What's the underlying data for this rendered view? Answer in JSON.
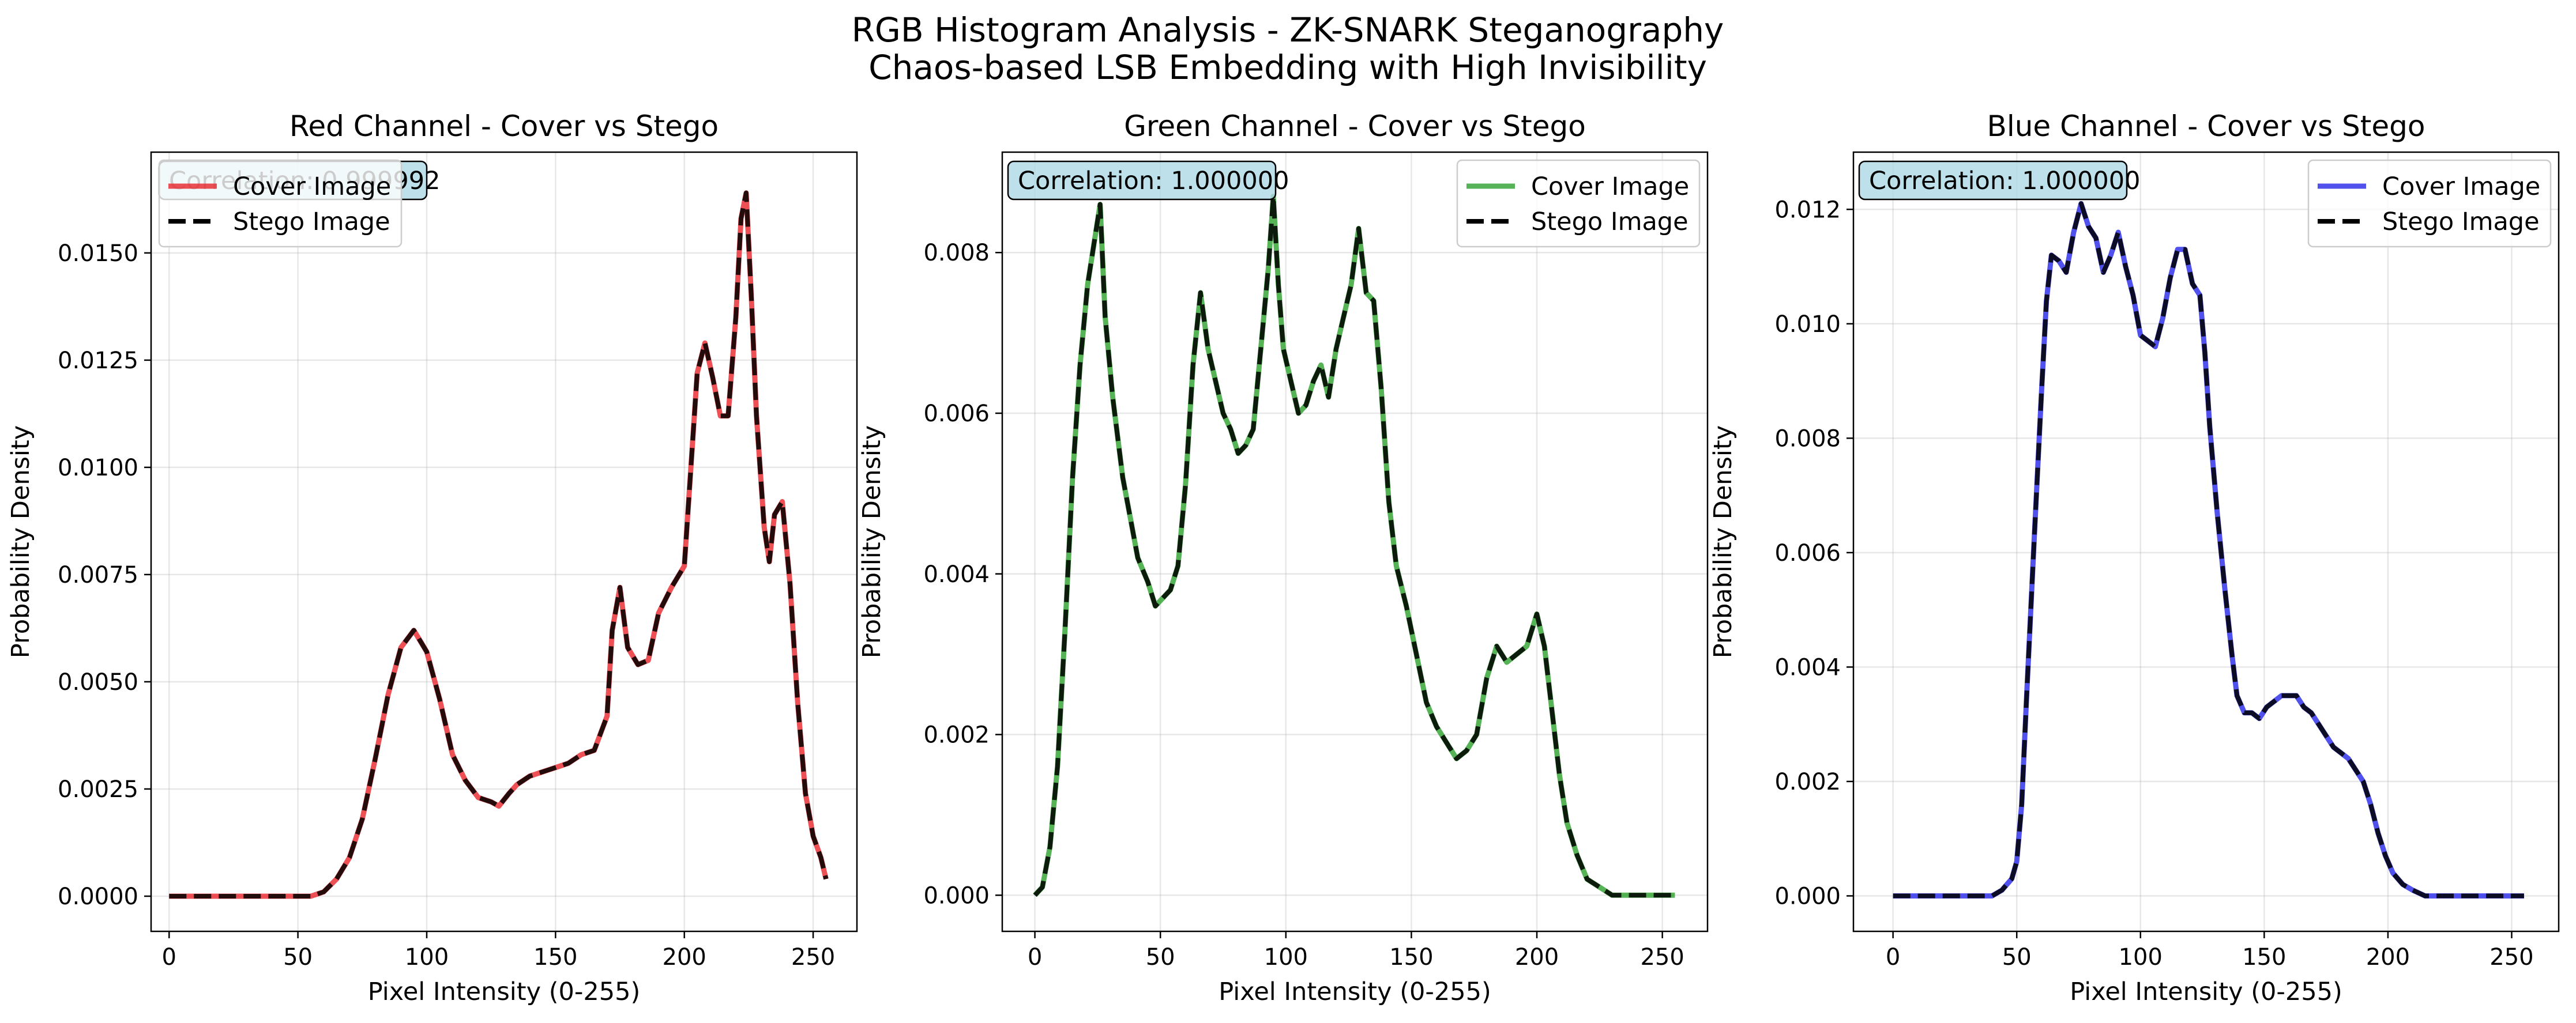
{
  "figure": {
    "title_line1": "RGB Histogram Analysis - ZK-SNARK Steganography",
    "title_line2": "Chaos-based LSB Embedding with High Invisibility"
  },
  "chart_data": [
    {
      "type": "line",
      "title": "Red Channel - Cover vs Stego",
      "xlabel": "Pixel Intensity (0-255)",
      "ylabel": "Probability Density",
      "xlim": [
        -7,
        267
      ],
      "ylim": [
        -0.00082,
        0.01735
      ],
      "xticks": [
        0,
        50,
        100,
        150,
        200,
        250
      ],
      "yticks": [
        0.0,
        0.0025,
        0.005,
        0.0075,
        0.01,
        0.0125,
        0.015
      ],
      "ytick_labels": [
        "0.0000",
        "0.0025",
        "0.0050",
        "0.0075",
        "0.0100",
        "0.0125",
        "0.0150"
      ],
      "grid": true,
      "legend": "top-left",
      "correlation_text": "Correlation: 0.999992",
      "cover_color": "#e8262c",
      "series": [
        {
          "name": "Cover Image",
          "style": "solid"
        },
        {
          "name": "Stego Image",
          "style": "dashed"
        }
      ],
      "points": [
        [
          0,
          0
        ],
        [
          55,
          0
        ],
        [
          60,
          0.0001
        ],
        [
          65,
          0.0004
        ],
        [
          70,
          0.0009
        ],
        [
          75,
          0.0018
        ],
        [
          80,
          0.0032
        ],
        [
          85,
          0.0047
        ],
        [
          90,
          0.0058
        ],
        [
          95,
          0.0062
        ],
        [
          98,
          0.0059
        ],
        [
          100,
          0.0057
        ],
        [
          105,
          0.0046
        ],
        [
          110,
          0.0033
        ],
        [
          115,
          0.0027
        ],
        [
          120,
          0.0023
        ],
        [
          125,
          0.0022
        ],
        [
          128,
          0.0021
        ],
        [
          132,
          0.0024
        ],
        [
          135,
          0.0026
        ],
        [
          140,
          0.0028
        ],
        [
          145,
          0.0029
        ],
        [
          150,
          0.003
        ],
        [
          155,
          0.0031
        ],
        [
          160,
          0.0033
        ],
        [
          165,
          0.0034
        ],
        [
          170,
          0.0042
        ],
        [
          172,
          0.0062
        ],
        [
          175,
          0.0072
        ],
        [
          178,
          0.0058
        ],
        [
          182,
          0.0054
        ],
        [
          186,
          0.0055
        ],
        [
          190,
          0.0066
        ],
        [
          195,
          0.0072
        ],
        [
          200,
          0.0077
        ],
        [
          205,
          0.0122
        ],
        [
          208,
          0.0129
        ],
        [
          211,
          0.0121
        ],
        [
          214,
          0.0112
        ],
        [
          217,
          0.0112
        ],
        [
          220,
          0.0135
        ],
        [
          222,
          0.0158
        ],
        [
          224,
          0.0164
        ],
        [
          226,
          0.014
        ],
        [
          228,
          0.0112
        ],
        [
          231,
          0.0086
        ],
        [
          233,
          0.0078
        ],
        [
          235,
          0.0089
        ],
        [
          238,
          0.0092
        ],
        [
          241,
          0.0073
        ],
        [
          244,
          0.0045
        ],
        [
          247,
          0.0024
        ],
        [
          250,
          0.0014
        ],
        [
          253,
          0.0009
        ],
        [
          255,
          0.0004
        ]
      ]
    },
    {
      "type": "line",
      "title": "Green Channel - Cover vs Stego",
      "xlabel": "Pixel Intensity (0-255)",
      "ylabel": "Probability Density",
      "xlim": [
        -13,
        268
      ],
      "ylim": [
        -0.00045,
        0.00925
      ],
      "xticks": [
        0,
        50,
        100,
        150,
        200,
        250
      ],
      "yticks": [
        0.0,
        0.002,
        0.004,
        0.006,
        0.008
      ],
      "ytick_labels": [
        "0.000",
        "0.002",
        "0.004",
        "0.006",
        "0.008"
      ],
      "grid": true,
      "legend": "top-right",
      "correlation_text": "Correlation: 1.000000",
      "cover_color": "#2ca02c",
      "series": [
        {
          "name": "Cover Image",
          "style": "solid"
        },
        {
          "name": "Stego Image",
          "style": "dashed"
        }
      ],
      "points": [
        [
          0,
          0
        ],
        [
          3,
          0.0001
        ],
        [
          6,
          0.0006
        ],
        [
          9,
          0.0016
        ],
        [
          12,
          0.0033
        ],
        [
          15,
          0.0052
        ],
        [
          18,
          0.0066
        ],
        [
          21,
          0.0076
        ],
        [
          24,
          0.0082
        ],
        [
          26,
          0.0086
        ],
        [
          28,
          0.0072
        ],
        [
          31,
          0.0062
        ],
        [
          35,
          0.0052
        ],
        [
          38,
          0.0047
        ],
        [
          41,
          0.0042
        ],
        [
          45,
          0.0039
        ],
        [
          48,
          0.0036
        ],
        [
          51,
          0.0037
        ],
        [
          54,
          0.0038
        ],
        [
          57,
          0.0041
        ],
        [
          60,
          0.0051
        ],
        [
          63,
          0.0066
        ],
        [
          66,
          0.0075
        ],
        [
          69,
          0.0068
        ],
        [
          72,
          0.0064
        ],
        [
          75,
          0.006
        ],
        [
          78,
          0.0058
        ],
        [
          81,
          0.0055
        ],
        [
          84,
          0.0056
        ],
        [
          87,
          0.0058
        ],
        [
          90,
          0.0068
        ],
        [
          93,
          0.0078
        ],
        [
          95,
          0.0087
        ],
        [
          97,
          0.0076
        ],
        [
          99,
          0.0068
        ],
        [
          102,
          0.0064
        ],
        [
          105,
          0.006
        ],
        [
          108,
          0.0061
        ],
        [
          111,
          0.0064
        ],
        [
          114,
          0.0066
        ],
        [
          117,
          0.0062
        ],
        [
          120,
          0.0068
        ],
        [
          123,
          0.0072
        ],
        [
          126,
          0.0076
        ],
        [
          129,
          0.0083
        ],
        [
          132,
          0.0075
        ],
        [
          135,
          0.0074
        ],
        [
          138,
          0.0063
        ],
        [
          141,
          0.0049
        ],
        [
          144,
          0.0041
        ],
        [
          148,
          0.0036
        ],
        [
          152,
          0.003
        ],
        [
          156,
          0.0024
        ],
        [
          160,
          0.0021
        ],
        [
          164,
          0.0019
        ],
        [
          168,
          0.0017
        ],
        [
          172,
          0.0018
        ],
        [
          176,
          0.002
        ],
        [
          180,
          0.0027
        ],
        [
          184,
          0.0031
        ],
        [
          188,
          0.0029
        ],
        [
          192,
          0.003
        ],
        [
          196,
          0.0031
        ],
        [
          200,
          0.0035
        ],
        [
          203,
          0.0031
        ],
        [
          206,
          0.0023
        ],
        [
          209,
          0.0015
        ],
        [
          212,
          0.0009
        ],
        [
          216,
          0.0005
        ],
        [
          220,
          0.0002
        ],
        [
          225,
          0.0001
        ],
        [
          230,
          0
        ],
        [
          255,
          0
        ]
      ]
    },
    {
      "type": "line",
      "title": "Blue Channel - Cover vs Stego",
      "xlabel": "Pixel Intensity (0-255)",
      "ylabel": "Probability Density",
      "xlim": [
        -16,
        269
      ],
      "ylim": [
        -0.00062,
        0.013
      ],
      "xticks": [
        0,
        50,
        100,
        150,
        200,
        250
      ],
      "yticks": [
        0.0,
        0.002,
        0.004,
        0.006,
        0.008,
        0.01,
        0.012
      ],
      "ytick_labels": [
        "0.000",
        "0.002",
        "0.004",
        "0.006",
        "0.008",
        "0.010",
        "0.012"
      ],
      "grid": true,
      "legend": "top-right",
      "correlation_text": "Correlation: 1.000000",
      "cover_color": "#2626e8",
      "series": [
        {
          "name": "Cover Image",
          "style": "solid"
        },
        {
          "name": "Stego Image",
          "style": "dashed"
        }
      ],
      "points": [
        [
          0,
          0
        ],
        [
          40,
          0
        ],
        [
          44,
          0.0001
        ],
        [
          48,
          0.0003
        ],
        [
          50,
          0.0006
        ],
        [
          52,
          0.0016
        ],
        [
          54,
          0.0035
        ],
        [
          57,
          0.0062
        ],
        [
          60,
          0.0088
        ],
        [
          62,
          0.0104
        ],
        [
          64,
          0.0112
        ],
        [
          67,
          0.0111
        ],
        [
          70,
          0.0109
        ],
        [
          73,
          0.0116
        ],
        [
          76,
          0.0121
        ],
        [
          79,
          0.0117
        ],
        [
          82,
          0.0115
        ],
        [
          85,
          0.0109
        ],
        [
          88,
          0.0112
        ],
        [
          91,
          0.0116
        ],
        [
          94,
          0.011
        ],
        [
          97,
          0.0105
        ],
        [
          100,
          0.0098
        ],
        [
          103,
          0.0097
        ],
        [
          106,
          0.0096
        ],
        [
          109,
          0.0101
        ],
        [
          112,
          0.0108
        ],
        [
          115,
          0.0113
        ],
        [
          118,
          0.0113
        ],
        [
          121,
          0.0107
        ],
        [
          124,
          0.0105
        ],
        [
          126,
          0.0095
        ],
        [
          128,
          0.0082
        ],
        [
          131,
          0.0067
        ],
        [
          134,
          0.0054
        ],
        [
          137,
          0.0042
        ],
        [
          139,
          0.0035
        ],
        [
          142,
          0.0032
        ],
        [
          145,
          0.0032
        ],
        [
          148,
          0.0031
        ],
        [
          151,
          0.0033
        ],
        [
          154,
          0.0034
        ],
        [
          157,
          0.0035
        ],
        [
          160,
          0.0035
        ],
        [
          163,
          0.0035
        ],
        [
          166,
          0.0033
        ],
        [
          169,
          0.0032
        ],
        [
          172,
          0.003
        ],
        [
          175,
          0.0028
        ],
        [
          178,
          0.0026
        ],
        [
          181,
          0.0025
        ],
        [
          184,
          0.0024
        ],
        [
          187,
          0.0022
        ],
        [
          190,
          0.002
        ],
        [
          193,
          0.0016
        ],
        [
          196,
          0.0011
        ],
        [
          199,
          0.0007
        ],
        [
          202,
          0.0004
        ],
        [
          206,
          0.0002
        ],
        [
          210,
          0.0001
        ],
        [
          215,
          0
        ],
        [
          255,
          0
        ]
      ]
    }
  ]
}
